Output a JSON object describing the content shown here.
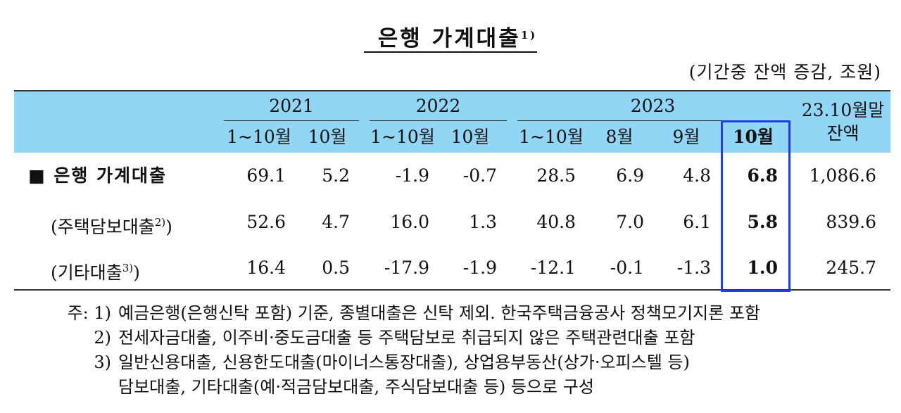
{
  "title": {
    "text": "은행 가계대출",
    "note": "1)"
  },
  "unit": "(기간중 잔액 증감, 조원)",
  "table": {
    "year_headers": [
      "2021",
      "2022",
      "2023"
    ],
    "balance_header": [
      "23.10월말",
      "잔액"
    ],
    "sub_headers": [
      "1~10월",
      "10월",
      "1~10월",
      "10월",
      "1~10월",
      "8월",
      "9월",
      "10월"
    ],
    "rows": [
      {
        "label": "■ 은행 가계대출",
        "values": [
          "69.1",
          "5.2",
          "-1.9",
          "-0.7",
          "28.5",
          "6.9",
          "4.8",
          "6.8",
          "1,086.6"
        ]
      },
      {
        "label": "(주택담보대출",
        "note": "2)",
        "suffix": ")",
        "values": [
          "52.6",
          "4.7",
          "16.0",
          "1.3",
          "40.8",
          "7.0",
          "6.1",
          "5.8",
          "839.6"
        ]
      },
      {
        "label": "(기타대출",
        "note": "3)",
        "suffix": ")",
        "values": [
          "16.4",
          "0.5",
          "-17.9",
          "-1.9",
          "-12.1",
          "-0.1",
          "-1.3",
          "1.0",
          "245.7"
        ]
      }
    ]
  },
  "notes": [
    {
      "marker": "주: 1)",
      "lines": [
        "예금은행(은행신탁 포함) 기준, 종별대출은 신탁 제외. 한국주택금융공사 정책모기지론 포함"
      ]
    },
    {
      "marker": "2)",
      "lines": [
        "전세자금대출, 이주비·중도금대출 등 주택담보로 취급되지 않은 주택관련대출 포함"
      ]
    },
    {
      "marker": "3)",
      "lines": [
        "일반신용대출, 신용한도대출(마이너스통장대출), 상업용부동산(상가·오피스텔 등)",
        "담보대출, 기타대출(예·적금담보대출, 주식담보대출 등) 등으로 구성"
      ]
    }
  ]
}
